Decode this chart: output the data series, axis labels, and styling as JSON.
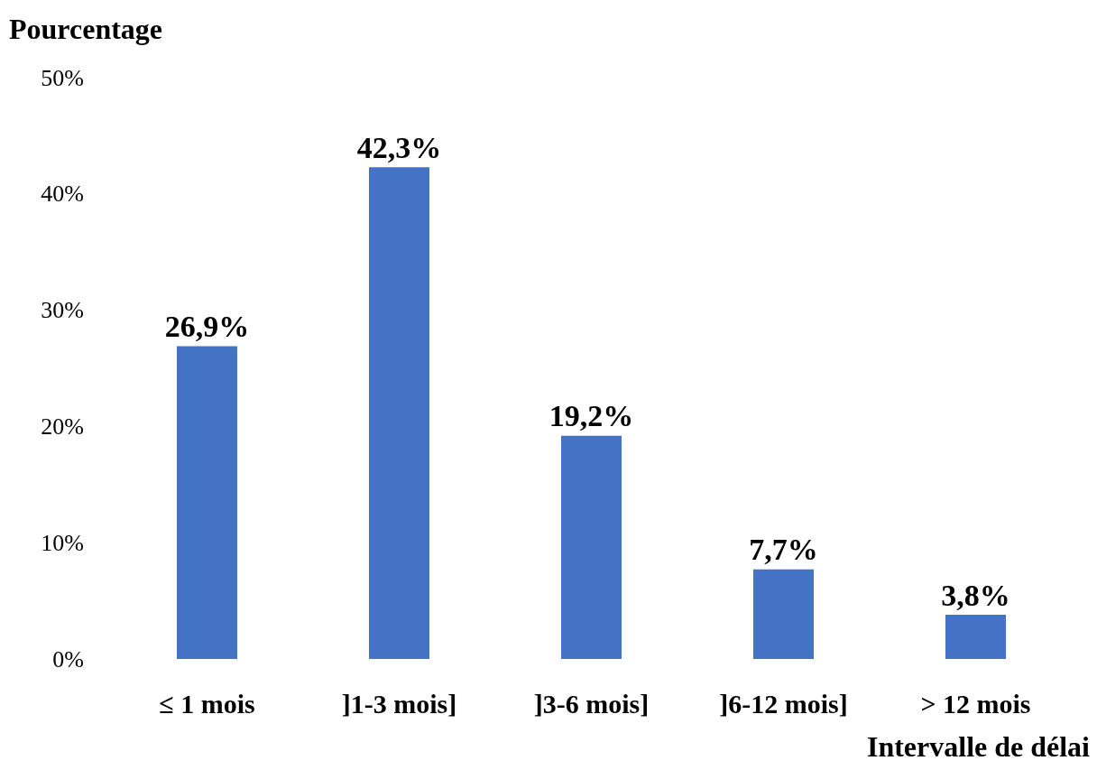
{
  "chart_data": {
    "type": "bar",
    "ylabel": "Pourcentage",
    "xlabel": "Intervalle de délai",
    "categories": [
      "≤ 1 mois",
      "]1-3 mois]",
      "]3-6 mois]",
      "]6-12 mois]",
      "> 12 mois"
    ],
    "values": [
      26.9,
      42.3,
      19.2,
      7.7,
      3.8
    ],
    "value_labels": [
      "26,9%",
      "42,3%",
      "19,2%",
      "7,7%",
      "3,8%"
    ],
    "color": "#4472c4",
    "ylim": [
      0,
      50
    ],
    "yticks": [
      {
        "value": 0,
        "label": "0%"
      },
      {
        "value": 10,
        "label": "10%"
      },
      {
        "value": 20,
        "label": "20%"
      },
      {
        "value": 30,
        "label": "30%"
      },
      {
        "value": 40,
        "label": "40%"
      },
      {
        "value": 50,
        "label": "50%"
      }
    ],
    "grid": false
  }
}
